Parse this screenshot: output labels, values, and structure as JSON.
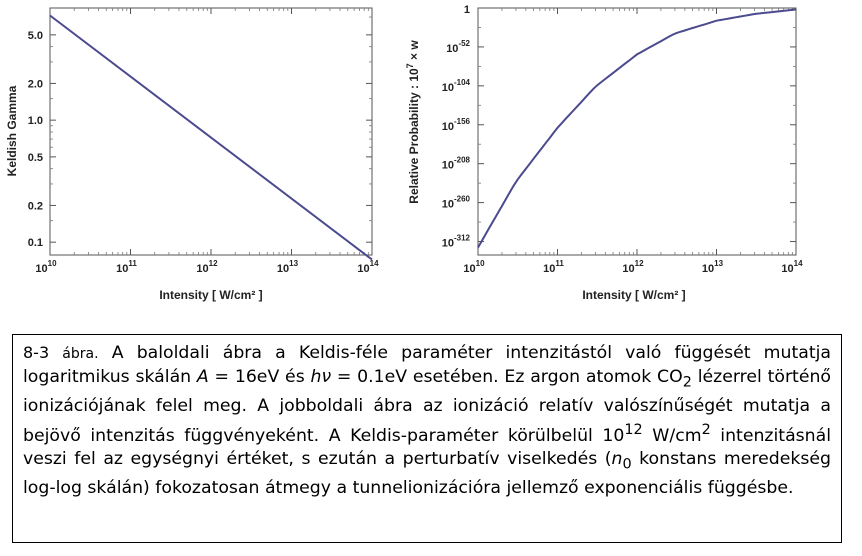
{
  "chart_data": [
    {
      "type": "line",
      "xlabel": "Intensity [ W/cm² ]",
      "ylabel": "Keldish  Gamma",
      "x_scale": "log",
      "y_scale": "log",
      "x_ticks": [
        "10",
        "10",
        "10",
        "10",
        "10"
      ],
      "x_tick_exps": [
        "10",
        "11",
        "12",
        "13",
        "14"
      ],
      "y_ticks": [
        "5.0",
        "2.0",
        "1.0",
        "0.5",
        "0.2",
        "0.1"
      ],
      "xlim": [
        10000000000.0,
        100000000000000.0
      ],
      "series": [
        {
          "x": [
            10000000000.0,
            100000000000000.0
          ],
          "y": [
            7.2,
            0.072
          ],
          "color": "#4b4a8f"
        }
      ]
    },
    {
      "type": "line",
      "xlabel": "Intensity [ W/cm² ]",
      "ylabel": "Relative  Probability  :  10",
      "ylabel_sup": "7",
      "ylabel_tail": "  ×  w",
      "x_scale": "log",
      "y_scale": "log",
      "x_ticks": [
        "10",
        "10",
        "10",
        "10",
        "10"
      ],
      "x_tick_exps": [
        "10",
        "11",
        "12",
        "13",
        "14"
      ],
      "y_ticks": [
        "1",
        "10",
        "10",
        "10",
        "10",
        "10",
        "10"
      ],
      "y_tick_exps": [
        "",
        "-52",
        "-104",
        "-156",
        "-208",
        "-260",
        "-312"
      ],
      "xlim": [
        10000000000.0,
        100000000000000.0
      ],
      "ylim_log10": [
        -330,
        0
      ],
      "series": [
        {
          "x": [
            10000000000.0,
            30000000000.0,
            100000000000.0,
            300000000000.0,
            1000000000000.0,
            3000000000000.0,
            10000000000000.0,
            30000000000000.0,
            100000000000000.0
          ],
          "y_log10": [
            -320,
            -232,
            -160,
            -105,
            -62,
            -34,
            -17,
            -8,
            -2
          ],
          "color": "#4b4a8f"
        }
      ]
    }
  ],
  "caption": {
    "fig_num": "8-3",
    "fig_word": "ábra.",
    "text_1": " A baloldali ábra a Keldis-féle  paraméter intenzitástól való függését mutatja logaritmikus skálán ",
    "var_A": "A",
    "text_2": " = 16eV és ",
    "var_h": "h",
    "var_nu": "ν",
    "text_3": " = 0.1eV esetében. Ez argon atomok CO",
    "sub_2": "2",
    "text_4": " lézerrel történő ionizációjának felel meg. A jobboldali ábra az ionizáció relatív valószínűségét mutatja a bejövő intenzitás függvényeként. A Keldis-paraméter körülbelül 10",
    "sup_12": "12",
    "text_5": " W/cm",
    "sup_2": "2",
    "text_6": " intenzitásnál veszi fel az egységnyi értéket, s ezután a perturbatív viselkedés (",
    "var_n": "n",
    "sub_0": "0",
    "text_7": " konstans meredekség log-log skálán) fokozatosan átmegy a tunnelionizációra jellemző exponenciális függésbe."
  }
}
